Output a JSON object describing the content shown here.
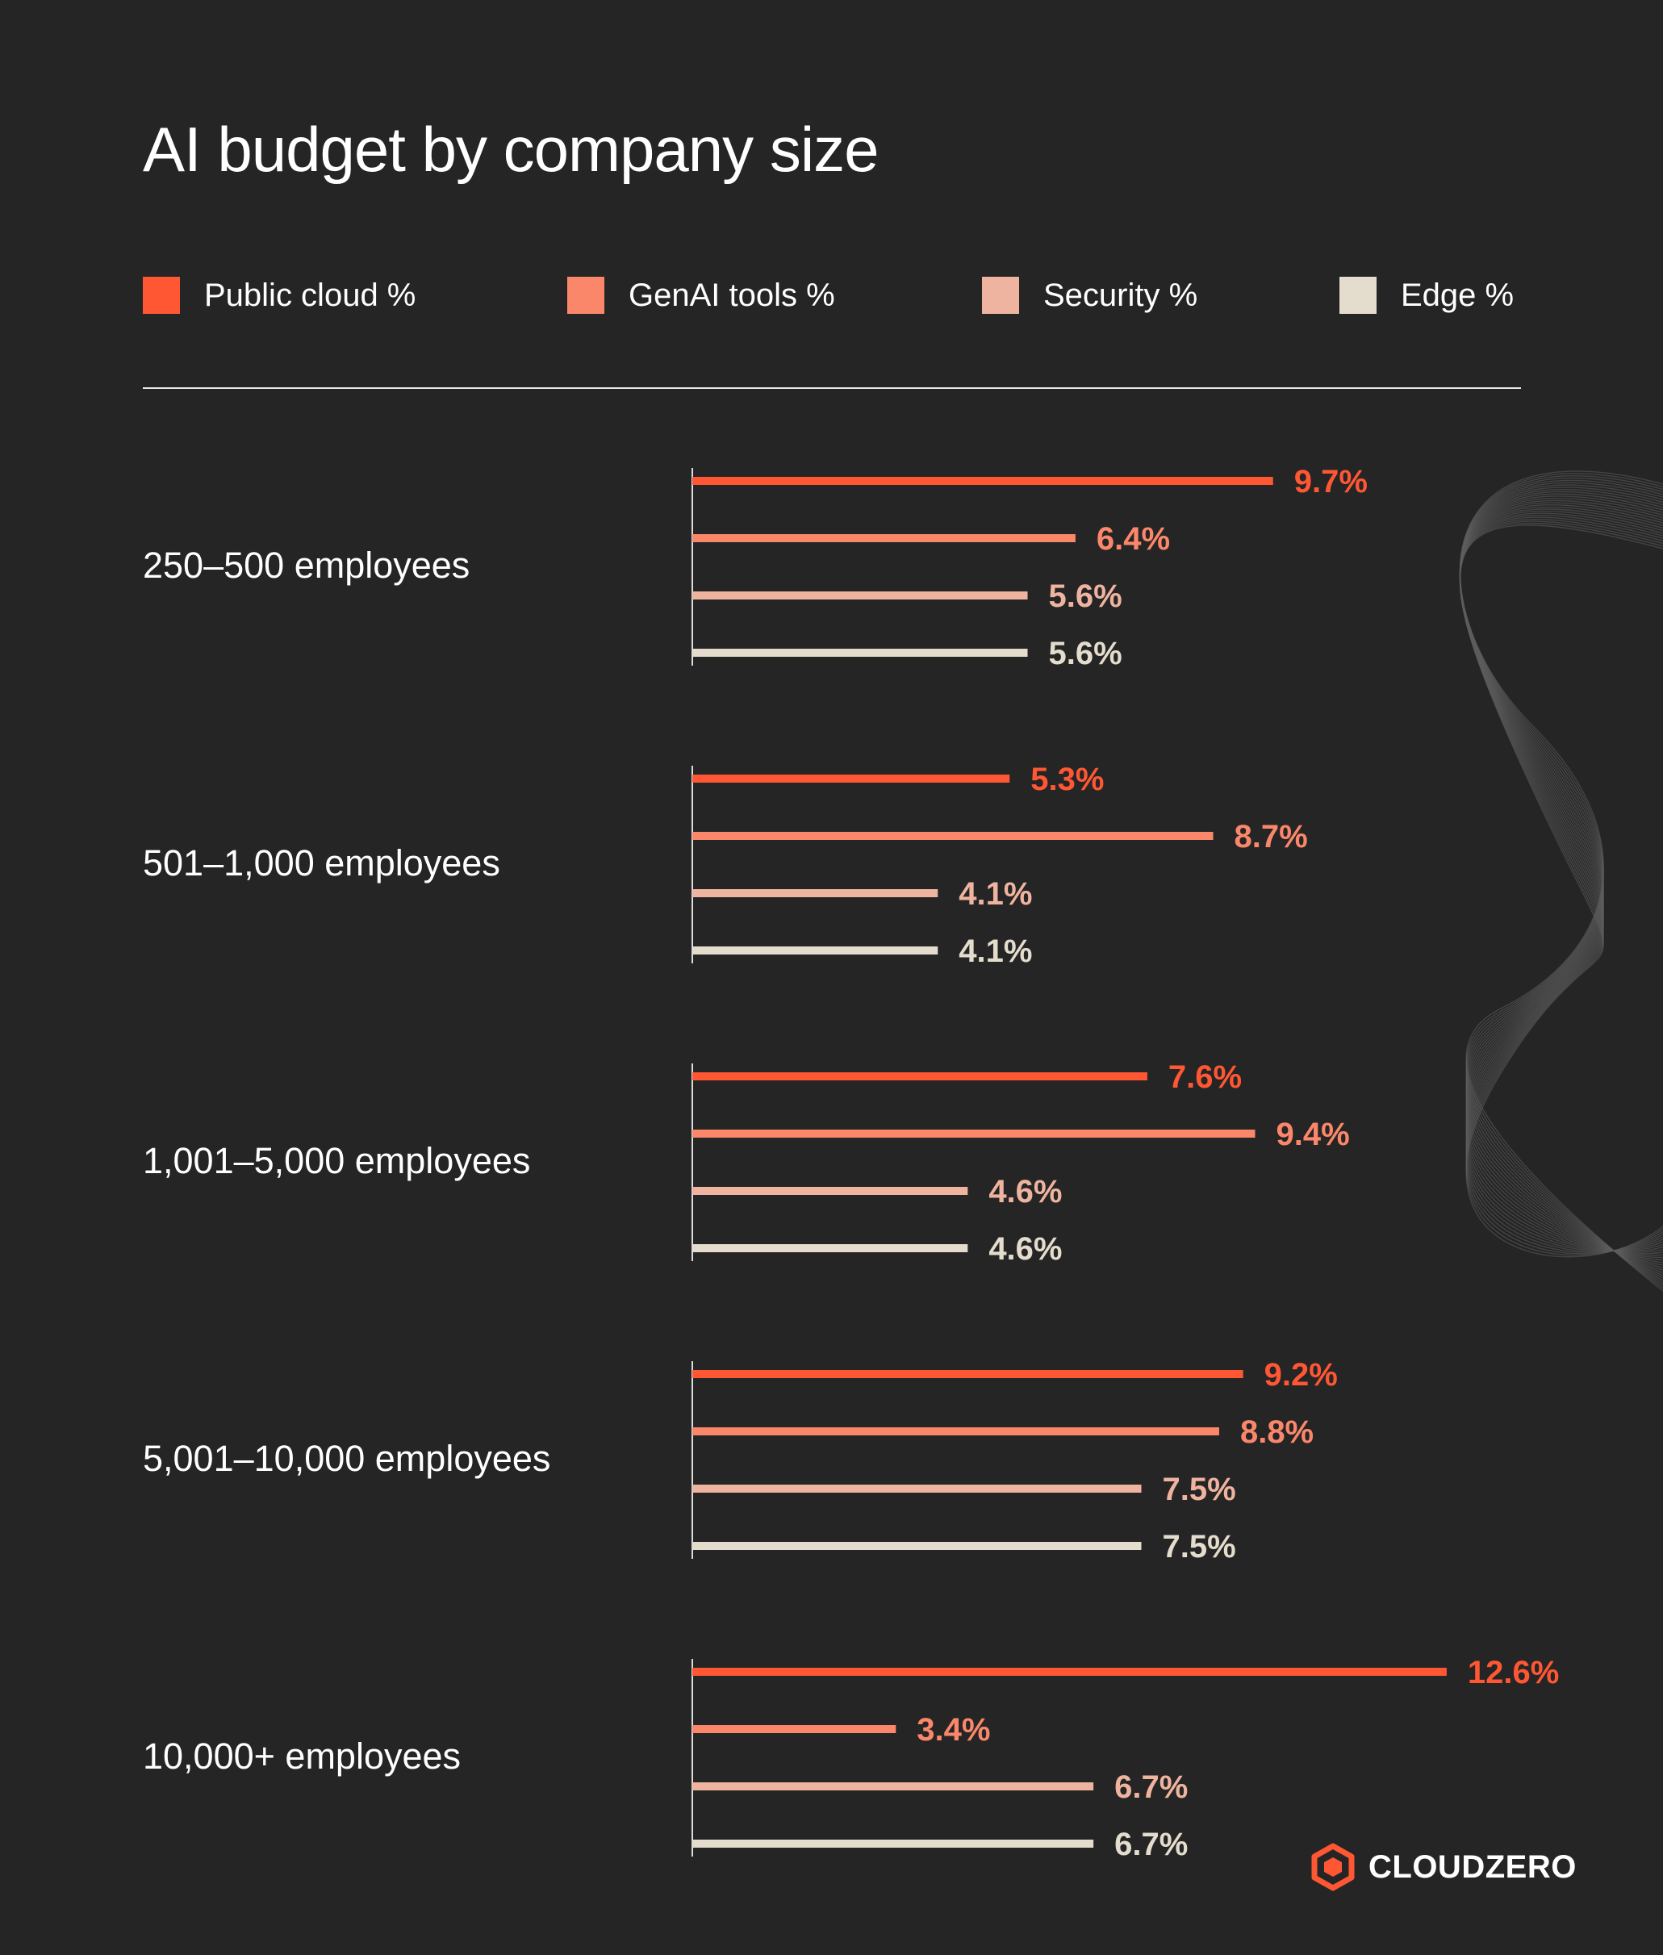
{
  "chart_data": {
    "type": "bar",
    "orientation": "horizontal",
    "title": "AI budget by company size",
    "categories": [
      "250–500 employees",
      "501–1,000 employees",
      "1,001–5,000 employees",
      "5,001–10,000 employees",
      "10,000+ employees"
    ],
    "series": [
      {
        "name": "Public cloud %",
        "color": "#ff5733",
        "values": [
          9.7,
          5.3,
          7.6,
          9.2,
          12.6
        ],
        "labels": [
          "9.7%",
          "5.3%",
          "7.6%",
          "9.2%",
          "12.6%"
        ]
      },
      {
        "name": "GenAI tools %",
        "color": "#fb876b",
        "values": [
          6.4,
          8.7,
          9.4,
          8.8,
          3.4
        ],
        "labels": [
          "6.4%",
          "8.7%",
          "9.4%",
          "8.8%",
          "3.4%"
        ]
      },
      {
        "name": "Security %",
        "color": "#efb49f",
        "values": [
          5.6,
          4.1,
          4.6,
          7.5,
          6.7
        ],
        "labels": [
          "5.6%",
          "4.1%",
          "4.6%",
          "7.5%",
          "6.7%"
        ]
      },
      {
        "name": "Edge %",
        "color": "#e4ddcd",
        "values": [
          5.6,
          4.1,
          4.6,
          7.5,
          6.7
        ],
        "labels": [
          "5.6%",
          "4.1%",
          "4.6%",
          "7.5%",
          "6.7%"
        ]
      }
    ],
    "legend_position": "top",
    "grid": false
  },
  "brand": {
    "name": "CLOUDZERO",
    "accent": "#ff5733",
    "background": "#252525"
  }
}
